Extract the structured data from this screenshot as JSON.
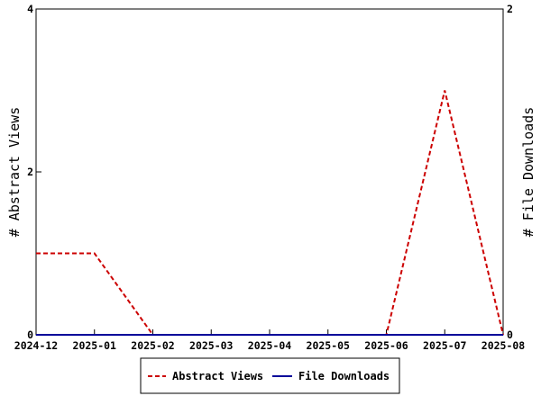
{
  "chart_data": {
    "type": "line",
    "x": [
      "2024-12",
      "2025-01",
      "2025-02",
      "2025-03",
      "2025-04",
      "2025-05",
      "2025-06",
      "2025-07",
      "2025-08"
    ],
    "series": [
      {
        "name": "Abstract Views",
        "axis": "left",
        "color": "#cc0000",
        "dash": "dashed",
        "values": [
          1,
          1,
          0,
          0,
          0,
          0,
          0,
          3,
          0
        ]
      },
      {
        "name": "File Downloads",
        "axis": "right",
        "color": "#000099",
        "dash": "solid",
        "values": [
          0,
          0,
          0,
          0,
          0,
          0,
          0,
          0,
          0
        ]
      }
    ],
    "ylabel_left": "# Abstract Views",
    "ylabel_right": "# File Downloads",
    "ylim_left": [
      0,
      4
    ],
    "ylim_right": [
      0,
      2
    ],
    "yticks_left": [
      "0",
      "2",
      "4"
    ],
    "yticks_right": [
      "0",
      "2"
    ],
    "grid": false,
    "legend_position": "bottom"
  }
}
